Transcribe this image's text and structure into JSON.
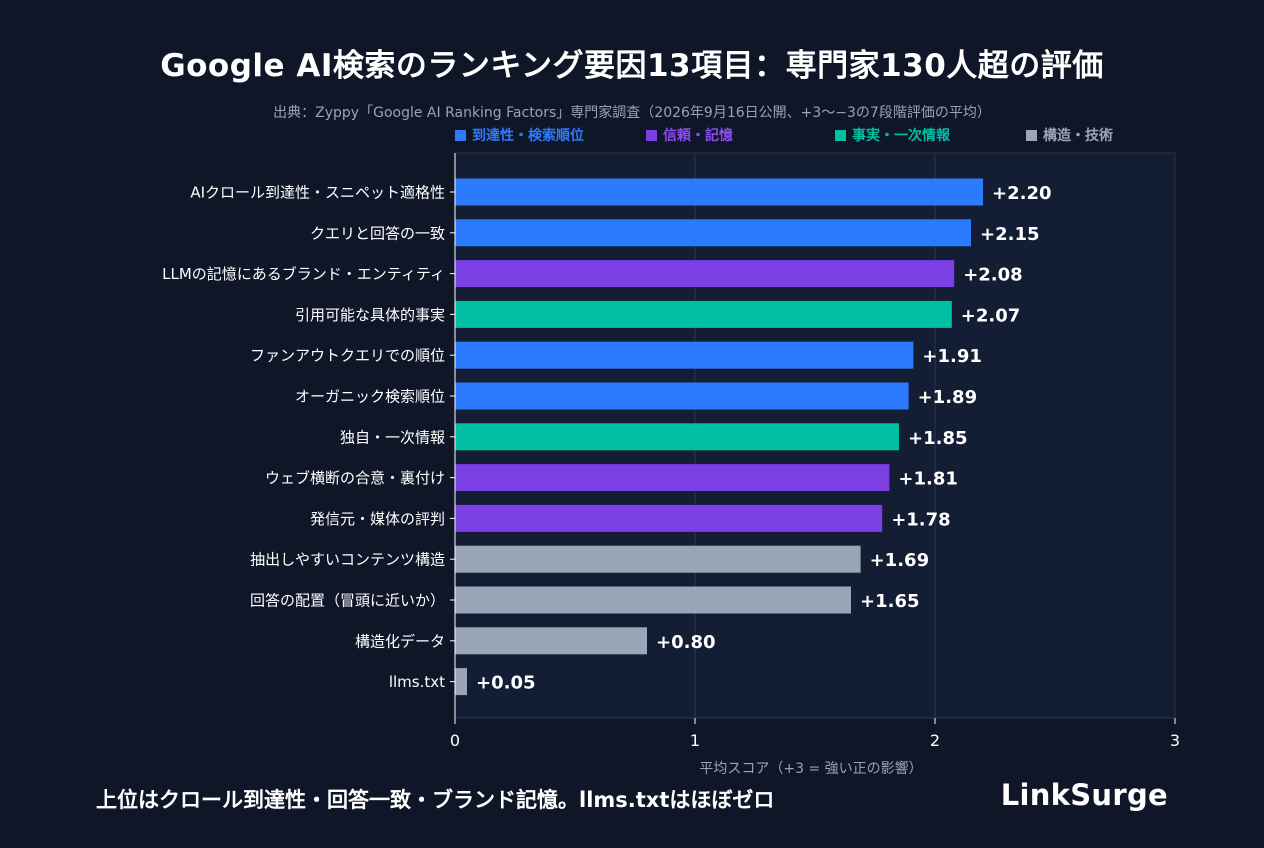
{
  "chart_data": {
    "type": "bar",
    "orientation": "horizontal",
    "title": "Google AI検索のランキング要因13項目：専門家130人超の評価",
    "subtitle": "出典：Zyppy「Google AI Ranking Factors」専門家調査（2026年9月16日公開、+3〜−3の7段階評価の平均）",
    "xlabel": "平均スコア（+3 = 強い正の影響）",
    "ylabel": "",
    "xlim": [
      0,
      3
    ],
    "xticks": [
      "0",
      "1",
      "2",
      "3"
    ],
    "grid": true,
    "legend_position": "top",
    "legend": [
      {
        "name": "到達性・検索順位",
        "color": "#2b7bff"
      },
      {
        "name": "信頼・記憶",
        "color": "#7b3fe4"
      },
      {
        "name": "事実・一次情報",
        "color": "#00bfa5"
      },
      {
        "name": "構造・技術",
        "color": "#9aa5b8"
      }
    ],
    "categories": [
      "AIクロール到達性・スニペット適格性",
      "クエリと回答の一致",
      "LLMの記憶にあるブランド・エンティティ",
      "引用可能な具体的事実",
      "ファンアウトクエリでの順位",
      "オーガニック検索順位",
      "独自・一次情報",
      "ウェブ横断の合意・裏付け",
      "発信元・媒体の評判",
      "抽出しやすいコンテンツ構造",
      "回答の配置（冒頭に近いか）",
      "構造化データ",
      "llms.txt"
    ],
    "values": [
      2.2,
      2.15,
      2.08,
      2.07,
      1.91,
      1.89,
      1.85,
      1.81,
      1.78,
      1.69,
      1.65,
      0.8,
      0.05
    ],
    "value_labels": [
      "+2.20",
      "+2.15",
      "+2.08",
      "+2.07",
      "+1.91",
      "+1.89",
      "+1.85",
      "+1.81",
      "+1.78",
      "+1.69",
      "+1.65",
      "+0.80",
      "+0.05"
    ],
    "groups": [
      0,
      0,
      1,
      2,
      0,
      0,
      2,
      1,
      1,
      3,
      3,
      3,
      3
    ]
  },
  "footer": {
    "caption": "上位はクロール到達性・回答一致・ブランド記憶。llms.txtはほぼゼロ",
    "brand": "LinkSurge"
  },
  "colors": {
    "background": "#0f1628",
    "plot_background": "#131d33",
    "grid": "#2a3650",
    "axis_text": "#ffffff",
    "muted_text": "#9aa3b2"
  }
}
